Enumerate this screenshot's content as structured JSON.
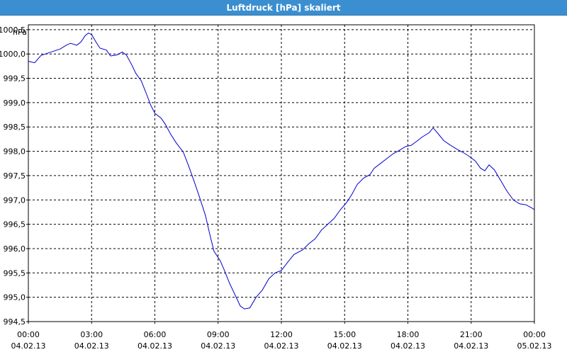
{
  "window": {
    "title": "Luftdruck [hPa] skaliert"
  },
  "colors": {
    "titlebar": "#3b8fd0",
    "series": "#0000cc",
    "grid": "#000000"
  },
  "chart_data": {
    "type": "line",
    "title": "Luftdruck [hPa] skaliert",
    "ylabel": "hPa",
    "xlabel": "",
    "grid": true,
    "ylim": [
      994.5,
      1000.6
    ],
    "yticks": [
      {
        "v": 994.5,
        "label": "994,5"
      },
      {
        "v": 995.0,
        "label": "995,0"
      },
      {
        "v": 995.5,
        "label": "995,5"
      },
      {
        "v": 996.0,
        "label": "996,0"
      },
      {
        "v": 996.5,
        "label": "996,5"
      },
      {
        "v": 997.0,
        "label": "997,0"
      },
      {
        "v": 997.5,
        "label": "997,5"
      },
      {
        "v": 998.0,
        "label": "998,0"
      },
      {
        "v": 998.5,
        "label": "998,5"
      },
      {
        "v": 999.0,
        "label": "999,0"
      },
      {
        "v": 999.5,
        "label": "999,5"
      },
      {
        "v": 1000.0,
        "label": "1000,0"
      },
      {
        "v": 1000.5,
        "label": "1000,5"
      }
    ],
    "xlim": [
      0,
      24
    ],
    "xticks": [
      {
        "h": 0,
        "time": "00:00",
        "date": "04.02.13"
      },
      {
        "h": 3,
        "time": "03:00",
        "date": "04.02.13"
      },
      {
        "h": 6,
        "time": "06:00",
        "date": "04.02.13"
      },
      {
        "h": 9,
        "time": "09:00",
        "date": "04.02.13"
      },
      {
        "h": 12,
        "time": "12:00",
        "date": "04.02.13"
      },
      {
        "h": 15,
        "time": "15:00",
        "date": "04.02.13"
      },
      {
        "h": 18,
        "time": "18:00",
        "date": "04.02.13"
      },
      {
        "h": 21,
        "time": "21:00",
        "date": "04.02.13"
      },
      {
        "h": 24,
        "time": "00:00",
        "date": "05.02.13"
      }
    ],
    "series": [
      {
        "points": [
          [
            0.0,
            999.85
          ],
          [
            0.3,
            999.82
          ],
          [
            0.6,
            999.97
          ],
          [
            1.0,
            1000.03
          ],
          [
            1.5,
            1000.1
          ],
          [
            1.8,
            1000.18
          ],
          [
            2.0,
            1000.22
          ],
          [
            2.3,
            1000.18
          ],
          [
            2.5,
            1000.25
          ],
          [
            2.7,
            1000.38
          ],
          [
            2.85,
            1000.43
          ],
          [
            3.0,
            1000.4
          ],
          [
            3.2,
            1000.25
          ],
          [
            3.4,
            1000.12
          ],
          [
            3.7,
            1000.08
          ],
          [
            3.9,
            999.96
          ],
          [
            4.2,
            999.98
          ],
          [
            4.45,
            1000.04
          ],
          [
            4.65,
            999.98
          ],
          [
            4.9,
            999.78
          ],
          [
            5.1,
            999.6
          ],
          [
            5.35,
            999.45
          ],
          [
            5.6,
            999.18
          ],
          [
            5.8,
            998.95
          ],
          [
            6.0,
            998.78
          ],
          [
            6.3,
            998.68
          ],
          [
            6.5,
            998.55
          ],
          [
            6.75,
            998.35
          ],
          [
            7.0,
            998.18
          ],
          [
            7.35,
            997.98
          ],
          [
            7.6,
            997.7
          ],
          [
            7.85,
            997.4
          ],
          [
            8.1,
            997.08
          ],
          [
            8.4,
            996.68
          ],
          [
            8.6,
            996.3
          ],
          [
            8.8,
            995.95
          ],
          [
            9.1,
            995.75
          ],
          [
            9.3,
            995.55
          ],
          [
            9.55,
            995.28
          ],
          [
            9.8,
            995.05
          ],
          [
            10.05,
            994.82
          ],
          [
            10.25,
            994.76
          ],
          [
            10.5,
            994.78
          ],
          [
            10.8,
            995.0
          ],
          [
            11.1,
            995.15
          ],
          [
            11.4,
            995.38
          ],
          [
            11.7,
            995.5
          ],
          [
            12.0,
            995.55
          ],
          [
            12.3,
            995.72
          ],
          [
            12.6,
            995.88
          ],
          [
            13.0,
            995.97
          ],
          [
            13.3,
            996.1
          ],
          [
            13.6,
            996.2
          ],
          [
            13.9,
            996.38
          ],
          [
            14.2,
            996.5
          ],
          [
            14.5,
            996.62
          ],
          [
            14.8,
            996.8
          ],
          [
            15.1,
            996.95
          ],
          [
            15.35,
            997.12
          ],
          [
            15.6,
            997.32
          ],
          [
            15.9,
            997.45
          ],
          [
            16.2,
            997.52
          ],
          [
            16.4,
            997.65
          ],
          [
            16.7,
            997.75
          ],
          [
            17.0,
            997.85
          ],
          [
            17.3,
            997.95
          ],
          [
            17.6,
            998.02
          ],
          [
            17.9,
            998.1
          ],
          [
            18.15,
            998.12
          ],
          [
            18.4,
            998.2
          ],
          [
            18.7,
            998.3
          ],
          [
            19.0,
            998.38
          ],
          [
            19.2,
            998.48
          ],
          [
            19.4,
            998.38
          ],
          [
            19.7,
            998.22
          ],
          [
            20.0,
            998.13
          ],
          [
            20.3,
            998.05
          ],
          [
            20.6,
            997.98
          ],
          [
            20.9,
            997.9
          ],
          [
            21.2,
            997.8
          ],
          [
            21.45,
            997.65
          ],
          [
            21.65,
            997.6
          ],
          [
            21.85,
            997.72
          ],
          [
            22.1,
            997.62
          ],
          [
            22.4,
            997.4
          ],
          [
            22.7,
            997.18
          ],
          [
            23.0,
            997.0
          ],
          [
            23.3,
            996.92
          ],
          [
            23.6,
            996.9
          ],
          [
            23.9,
            996.83
          ],
          [
            24.0,
            996.8
          ]
        ]
      }
    ]
  }
}
